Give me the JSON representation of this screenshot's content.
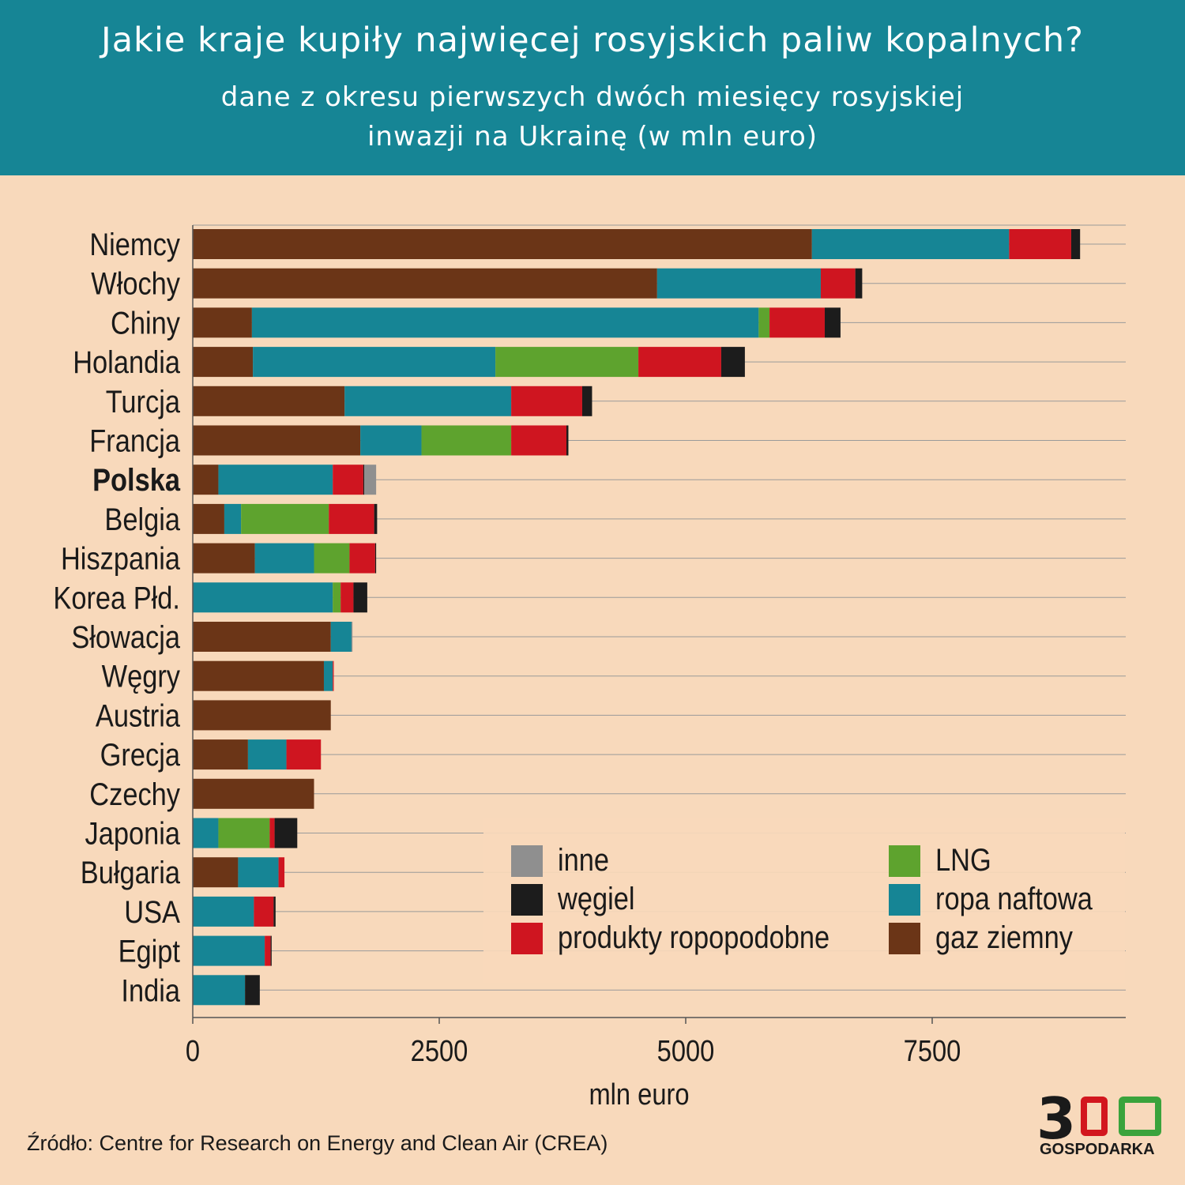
{
  "header": {
    "title": "Jakie kraje kupiły najwięcej rosyjskich paliw kopalnych?",
    "subtitle_line1": "dane z okresu pierwszych dwóch miesięcy rosyjskiej",
    "subtitle_line2": "inwazji na Ukrainę (w mln euro)"
  },
  "footer": {
    "source": "Źródło: Centre for Research on Energy and Clean Air (CREA)"
  },
  "logo": {
    "number": "300",
    "name": "GOSPODARKA"
  },
  "colors": {
    "header_bg": "#168595",
    "page_bg": "#f8d9bb",
    "gaz_ziemny": "#6b3517",
    "ropa_naftowa": "#168595",
    "lng": "#5ea32e",
    "produkty_ropopodobne": "#cf1520",
    "wegiel": "#1c1c1c",
    "inne": "#8f8f8f"
  },
  "chart_data": {
    "type": "bar",
    "orientation": "horizontal",
    "stacked": true,
    "xlabel": "mln euro",
    "ylabel": "",
    "xlim": [
      0,
      9450
    ],
    "xticks": [
      0,
      2500,
      5000,
      7500
    ],
    "grid": true,
    "legend_position": "bottom-right",
    "highlight_category": "Polska",
    "categories": [
      "Niemcy",
      "Włochy",
      "Chiny",
      "Holandia",
      "Turcja",
      "Francja",
      "Polska",
      "Belgia",
      "Hiszpania",
      "Korea Płd.",
      "Słowacja",
      "Węgry",
      "Austria",
      "Grecja",
      "Czechy",
      "Japonia",
      "Bułgaria",
      "USA",
      "Egipt",
      "India"
    ],
    "series": [
      {
        "name": "gaz ziemny",
        "color": "#6b3517",
        "values": [
          6280,
          4710,
          600,
          610,
          1540,
          1700,
          260,
          320,
          630,
          0,
          1400,
          1330,
          1400,
          560,
          1230,
          0,
          460,
          0,
          0,
          0
        ]
      },
      {
        "name": "ropa naftowa",
        "color": "#168595",
        "values": [
          2000,
          1660,
          5140,
          2460,
          1690,
          620,
          1160,
          170,
          600,
          1420,
          210,
          90,
          0,
          390,
          0,
          260,
          410,
          620,
          730,
          530
        ]
      },
      {
        "name": "LNG",
        "color": "#5ea32e",
        "values": [
          0,
          0,
          110,
          1450,
          0,
          910,
          0,
          890,
          360,
          80,
          0,
          0,
          0,
          0,
          0,
          520,
          0,
          0,
          0,
          0
        ]
      },
      {
        "name": "produkty ropopodobne",
        "color": "#cf1520",
        "values": [
          630,
          350,
          560,
          840,
          720,
          560,
          310,
          460,
          260,
          130,
          0,
          10,
          0,
          350,
          0,
          50,
          60,
          200,
          60,
          0
        ]
      },
      {
        "name": "węgiel",
        "color": "#1c1c1c",
        "values": [
          90,
          70,
          160,
          240,
          100,
          20,
          10,
          30,
          10,
          140,
          0,
          0,
          0,
          0,
          0,
          230,
          0,
          20,
          10,
          150
        ]
      },
      {
        "name": "inne",
        "color": "#8f8f8f",
        "values": [
          0,
          0,
          0,
          0,
          0,
          0,
          120,
          0,
          0,
          0,
          10,
          0,
          0,
          0,
          0,
          0,
          0,
          0,
          0,
          0
        ]
      }
    ],
    "legend": [
      {
        "label": "inne",
        "color": "#8f8f8f"
      },
      {
        "label": "węgiel",
        "color": "#1c1c1c"
      },
      {
        "label": "produkty ropopodobne",
        "color": "#cf1520"
      },
      {
        "label": "LNG",
        "color": "#5ea32e"
      },
      {
        "label": "ropa naftowa",
        "color": "#168595"
      },
      {
        "label": "gaz ziemny",
        "color": "#6b3517"
      }
    ]
  }
}
